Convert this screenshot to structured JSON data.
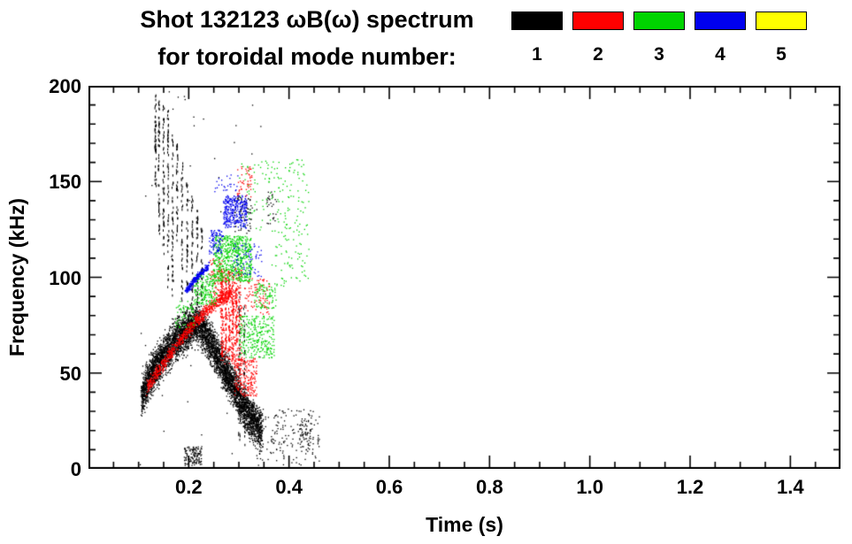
{
  "title": {
    "line1": "Shot 132123 ωB(ω) spectrum",
    "line2": "for toroidal mode number:"
  },
  "legend": {
    "items": [
      {
        "label": "1",
        "color": "#000000"
      },
      {
        "label": "2",
        "color": "#ff0000"
      },
      {
        "label": "3",
        "color": "#00d400"
      },
      {
        "label": "4",
        "color": "#0000ee"
      },
      {
        "label": "5",
        "color": "#ffff00"
      }
    ]
  },
  "axes": {
    "xlabel": "Time (s)",
    "ylabel": "Frequency (kHz)",
    "xtick_labels": [
      "0.2",
      "0.4",
      "0.6",
      "0.8",
      "1.0",
      "1.2",
      "1.4"
    ],
    "ytick_labels": [
      "0",
      "50",
      "100",
      "150",
      "200"
    ]
  },
  "chart_data": {
    "type": "scatter",
    "title": "Shot 132123 ωB(ω) spectrum for toroidal mode number:",
    "xlabel": "Time (s)",
    "ylabel": "Frequency (kHz)",
    "xlim": [
      0,
      1.5
    ],
    "ylim": [
      0,
      200
    ],
    "xticks": [
      0.2,
      0.4,
      0.6,
      0.8,
      1.0,
      1.2,
      1.4
    ],
    "yticks": [
      0,
      50,
      100,
      150,
      200
    ],
    "x_minor_step": 0.05,
    "y_minor_step": 10,
    "grid": false,
    "legend_position": "top",
    "description": "Magnetic spectrogram: mode activity concentrated between t=0.10-0.45 s; n=1 (black) dominant band rising from 40 kHz at 0.1 s to ~76 kHz at 0.21 s then chirping down to ~20 kHz by 0.35 s, with vertical broadband bursts up to 195 kHz near t=0.13-0.23 s; n=2 (red) band 42-92 kHz plus bursts 55-105 kHz near t=0.27-0.30 s; n=3 (green) cluster 98-122 kHz at t=0.25-0.33 s and 58-80 kHz at t=0.30-0.37 s; n=4 (blue) arc 93-106 kHz at t=0.19-0.24 s and cluster 126-143 kHz at t=0.27-0.31 s; n=5 (yellow) no visible points.",
    "series": [
      {
        "name": "1",
        "color": "#000000",
        "bands": [
          {
            "path": [
              [
                0.105,
                38
              ],
              [
                0.125,
                50
              ],
              [
                0.15,
                60
              ],
              [
                0.175,
                68
              ],
              [
                0.2,
                74
              ],
              [
                0.215,
                76
              ],
              [
                0.23,
                72
              ],
              [
                0.25,
                62
              ],
              [
                0.265,
                55
              ],
              [
                0.285,
                45
              ],
              [
                0.305,
                34
              ],
              [
                0.325,
                26
              ],
              [
                0.345,
                20
              ]
            ],
            "hw": 15,
            "n": 5200
          }
        ],
        "boxes": [
          {
            "t": [
              0.19,
              0.225
            ],
            "f": [
              2,
              12
            ],
            "n": 130
          },
          {
            "t": [
              0.29,
              0.325
            ],
            "f": [
              124,
              142
            ],
            "n": 70
          },
          {
            "t": [
              0.33,
              0.46
            ],
            "f": [
              2,
              32
            ],
            "n": 160
          },
          {
            "t": [
              0.355,
              0.375
            ],
            "f": [
              128,
              145
            ],
            "n": 30
          },
          {
            "t": [
              0.42,
              0.445
            ],
            "f": [
              10,
              28
            ],
            "n": 60
          },
          {
            "t": [
              0.1,
              0.35
            ],
            "f": [
              0,
              200
            ],
            "n": 60
          }
        ],
        "vstreaks": [
          {
            "t": 0.133,
            "f": [
              148,
              196
            ],
            "n": 50
          },
          {
            "t": 0.14,
            "f": [
              122,
              194
            ],
            "n": 55
          },
          {
            "t": 0.149,
            "f": [
              112,
              190
            ],
            "n": 55
          },
          {
            "t": 0.158,
            "f": [
              95,
              188
            ],
            "n": 60
          },
          {
            "t": 0.167,
            "f": [
              90,
              178
            ],
            "n": 50
          },
          {
            "t": 0.176,
            "f": [
              118,
              170
            ],
            "n": 40
          },
          {
            "t": 0.186,
            "f": [
              88,
              162
            ],
            "n": 45
          },
          {
            "t": 0.196,
            "f": [
              96,
              150
            ],
            "n": 40
          },
          {
            "t": 0.206,
            "f": [
              86,
              144
            ],
            "n": 40
          },
          {
            "t": 0.216,
            "f": [
              84,
              136
            ],
            "n": 35
          },
          {
            "t": 0.225,
            "f": [
              88,
              128
            ],
            "n": 30
          },
          {
            "t": 0.3,
            "f": [
              15,
              95
            ],
            "n": 45
          },
          {
            "t": 0.31,
            "f": [
              12,
              90
            ],
            "n": 40
          }
        ]
      },
      {
        "name": "2",
        "color": "#ff0000",
        "bands": [
          {
            "path": [
              [
                0.115,
                42
              ],
              [
                0.14,
                52
              ],
              [
                0.165,
                61
              ],
              [
                0.19,
                70
              ],
              [
                0.215,
                78
              ],
              [
                0.24,
                84
              ],
              [
                0.265,
                89
              ],
              [
                0.285,
                92
              ]
            ],
            "hw": 5,
            "n": 800
          }
        ],
        "boxes": [
          {
            "t": [
              0.262,
              0.305
            ],
            "f": [
              55,
              105
            ],
            "n": 350
          },
          {
            "t": [
              0.29,
              0.335
            ],
            "f": [
              38,
              58
            ],
            "n": 220
          },
          {
            "t": [
              0.295,
              0.325
            ],
            "f": [
              142,
              158
            ],
            "n": 50
          },
          {
            "t": [
              0.31,
              0.36
            ],
            "f": [
              80,
              100
            ],
            "n": 90
          },
          {
            "t": [
              0.24,
              0.27
            ],
            "f": [
              90,
              110
            ],
            "n": 80
          }
        ],
        "vstreaks": [
          {
            "t": 0.266,
            "f": [
              60,
              104
            ],
            "n": 40
          },
          {
            "t": 0.273,
            "f": [
              58,
              100
            ],
            "n": 40
          },
          {
            "t": 0.28,
            "f": [
              62,
              106
            ],
            "n": 40
          },
          {
            "t": 0.287,
            "f": [
              56,
              98
            ],
            "n": 35
          },
          {
            "t": 0.294,
            "f": [
              60,
              95
            ],
            "n": 35
          }
        ]
      },
      {
        "name": "3",
        "color": "#00d400",
        "bands": [],
        "boxes": [
          {
            "t": [
              0.248,
              0.325
            ],
            "f": [
              98,
              122
            ],
            "n": 650
          },
          {
            "t": [
              0.21,
              0.255
            ],
            "f": [
              86,
              102
            ],
            "n": 180
          },
          {
            "t": [
              0.3,
              0.37
            ],
            "f": [
              58,
              80
            ],
            "n": 280
          },
          {
            "t": [
              0.3,
              0.44
            ],
            "f": [
              124,
              162
            ],
            "n": 150
          },
          {
            "t": [
              0.33,
              0.375
            ],
            "f": [
              84,
              97
            ],
            "n": 90
          },
          {
            "t": [
              0.365,
              0.44
            ],
            "f": [
              95,
              128
            ],
            "n": 70
          },
          {
            "t": [
              0.17,
              0.21
            ],
            "f": [
              74,
              88
            ],
            "n": 60
          }
        ],
        "vstreaks": []
      },
      {
        "name": "4",
        "color": "#0000ee",
        "bands": [
          {
            "path": [
              [
                0.193,
                93
              ],
              [
                0.205,
                97
              ],
              [
                0.218,
                101
              ],
              [
                0.23,
                104
              ],
              [
                0.238,
                106
              ]
            ],
            "hw": 2.5,
            "n": 260
          }
        ],
        "boxes": [
          {
            "t": [
              0.268,
              0.315
            ],
            "f": [
              126,
              143
            ],
            "n": 320
          },
          {
            "t": [
              0.24,
              0.268
            ],
            "f": [
              112,
              125
            ],
            "n": 90
          },
          {
            "t": [
              0.285,
              0.345
            ],
            "f": [
              100,
              118
            ],
            "n": 70
          },
          {
            "t": [
              0.25,
              0.3
            ],
            "f": [
              145,
              155
            ],
            "n": 25
          }
        ],
        "vstreaks": []
      },
      {
        "name": "5",
        "color": "#ffff00",
        "bands": [],
        "boxes": [],
        "vstreaks": []
      }
    ]
  }
}
